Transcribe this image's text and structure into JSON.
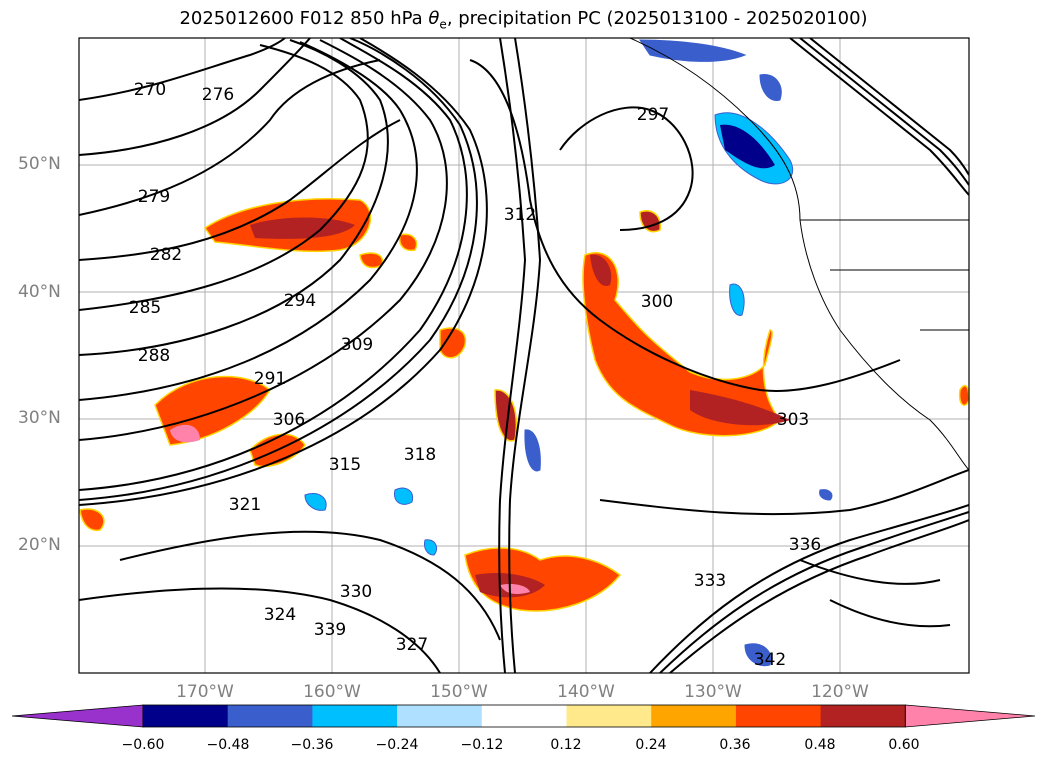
{
  "title": {
    "prefix": "2025012600 F012 850 hPa ",
    "symbol": "θ",
    "subscript": "e",
    "suffix": ", precipitation PC (2025013100 - 2025020100)"
  },
  "axes": {
    "lat_labels": [
      "50°N",
      "40°N",
      "30°N",
      "20°N"
    ],
    "lon_labels": [
      "170°W",
      "160°W",
      "150°W",
      "140°W",
      "130°W",
      "120°W"
    ],
    "extent": {
      "lon": [
        -180,
        -110
      ],
      "lat": [
        10,
        60
      ]
    },
    "grid": true
  },
  "contour_labels": [
    "270",
    "276",
    "279",
    "282",
    "285",
    "288",
    "291",
    "294",
    "297",
    "300",
    "303",
    "306",
    "309",
    "312",
    "315",
    "318",
    "321",
    "324",
    "327",
    "330",
    "333",
    "336",
    "339",
    "342"
  ],
  "colorbar": {
    "ticks": [
      "−0.60",
      "−0.48",
      "−0.36",
      "−0.24",
      "−0.12",
      "0.12",
      "0.24",
      "0.36",
      "0.48",
      "0.60"
    ],
    "colors": [
      "#9932cc",
      "#00008b",
      "#3a5fcd",
      "#00bfff",
      "#b0e0ff",
      "#ffffff",
      "#ffe98a",
      "#ffa500",
      "#ff4500",
      "#b22222",
      "#ff82ab"
    ]
  }
}
